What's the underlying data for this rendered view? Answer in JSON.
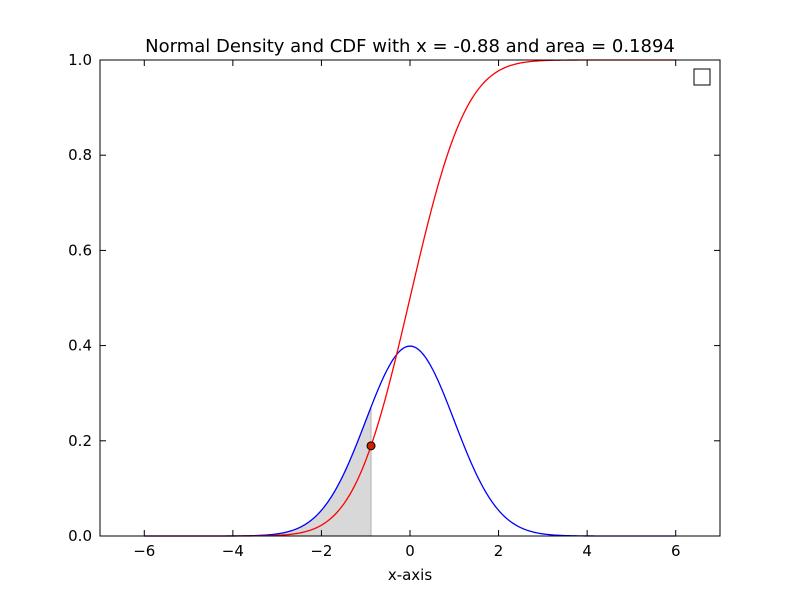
{
  "chart_data": {
    "type": "line",
    "title": "Normal Density and CDF with x = -0.88 and area = 0.1894",
    "xlabel": "x-axis",
    "ylabel": "",
    "xlim": [
      -7,
      7
    ],
    "ylim": [
      0.0,
      1.0
    ],
    "x_ticks": [
      -6,
      -4,
      -2,
      0,
      2,
      4,
      6
    ],
    "x_tick_labels": [
      "−6",
      "−4",
      "−2",
      "0",
      "2",
      "4",
      "6"
    ],
    "y_ticks": [
      0.0,
      0.2,
      0.4,
      0.6,
      0.8,
      1.0
    ],
    "y_tick_labels": [
      "0.0",
      "0.2",
      "0.4",
      "0.6",
      "0.8",
      "1.0"
    ],
    "curve_domain": [
      -6,
      6
    ],
    "series": [
      {
        "kind": "pdf",
        "color": "#0000ff"
      },
      {
        "kind": "cdf",
        "color": "#ff0000"
      }
    ],
    "shaded_region": {
      "x_from": -6,
      "x_to": -0.88,
      "color": "#d8d8d8"
    },
    "marker": {
      "x": -0.88,
      "y": 0.1894,
      "color": "#cc2200"
    },
    "grid": false,
    "legend": {
      "placement": "top-right",
      "entries": []
    }
  }
}
